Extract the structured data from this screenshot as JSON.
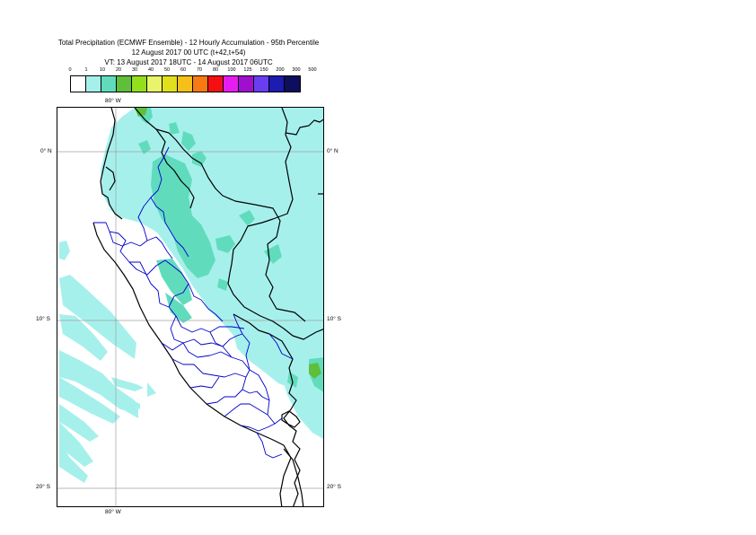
{
  "title": {
    "line1": "Total Precipitation (ECMWF Ensemble) - 12 Hourly Accumulation - 95th Percentile",
    "line2": "12 August 2017 00 UTC (t+42,t+54)",
    "line3": "VT: 13 August 2017 18UTC - 14 August 2017 06UTC"
  },
  "legend": {
    "ticks": [
      "0",
      "1",
      "10",
      "20",
      "30",
      "40",
      "50",
      "60",
      "70",
      "80",
      "100",
      "125",
      "150",
      "200",
      "300",
      "500"
    ],
    "colors": [
      "#ffffff",
      "#a6f0ec",
      "#60dcbd",
      "#5fbe3a",
      "#92e01d",
      "#e8f56a",
      "#e0e01c",
      "#f5c01a",
      "#f57a13",
      "#f50f13",
      "#e41ef0",
      "#a00fce",
      "#6a3ef0",
      "#1c1cb0",
      "#0e0e5c"
    ]
  },
  "map": {
    "lon_labels": [
      "80° W",
      "80° W"
    ],
    "lat_labels": {
      "left": [
        "0° N",
        "10° S",
        "20° S"
      ],
      "right": [
        "0° N",
        "10° S",
        "20° S"
      ]
    },
    "colors": {
      "light_precip": "#a6f0ec",
      "medium_precip": "#60dcbd",
      "heavy_precip": "#5fbe3a",
      "country_border": "#000000",
      "region_border": "#0000cc",
      "grid": "#a0a0a0"
    }
  }
}
